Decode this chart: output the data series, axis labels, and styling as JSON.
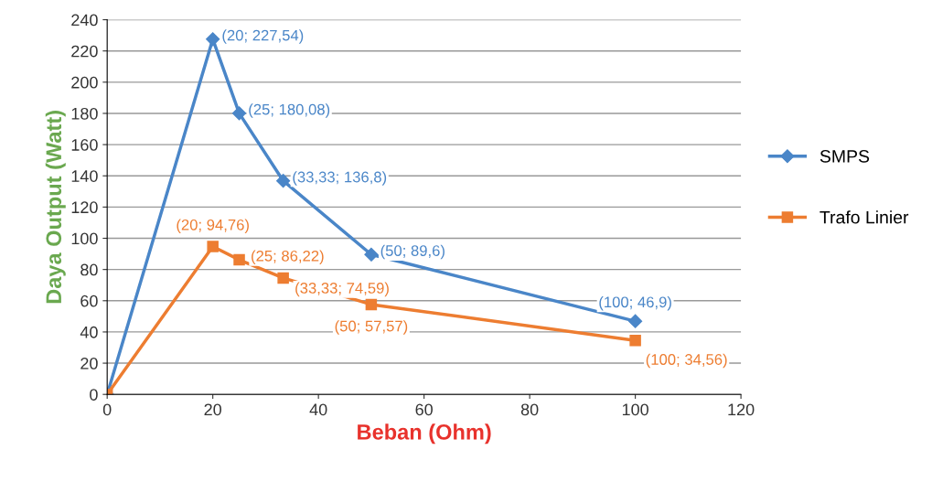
{
  "chart_data": {
    "type": "line",
    "xlabel": "Beban (Ohm)",
    "ylabel": "Daya Output (Watt)",
    "xlim": [
      0,
      120
    ],
    "xticks": [
      0,
      20,
      40,
      60,
      80,
      100,
      120
    ],
    "ylim": [
      0,
      240
    ],
    "yticks": [
      0,
      20,
      40,
      60,
      80,
      100,
      120,
      140,
      160,
      180,
      200,
      220,
      240
    ],
    "grid": "y",
    "legend": "right",
    "series": [
      {
        "name": "SMPS",
        "color": "#4a86c8",
        "marker": "diamond",
        "x": [
          0,
          20,
          25,
          33.33,
          50,
          100
        ],
        "values": [
          0,
          227.54,
          180.08,
          136.8,
          89.6,
          46.9
        ],
        "value_labels": [
          null,
          "(20; 227,54)",
          "(25; 180,08)",
          "(33,33; 136,8)",
          "(50; 89,6)",
          "(100; 46,9)"
        ]
      },
      {
        "name": "Trafo Linier",
        "color": "#ed7d31",
        "marker": "square",
        "x": [
          0,
          20,
          25,
          33.33,
          50,
          100
        ],
        "values": [
          0,
          94.76,
          86.22,
          74.59,
          57.57,
          34.56
        ],
        "value_labels": [
          null,
          "(20; 94,76)",
          "(25; 86,22)",
          "(33,33; 74,59)",
          "(50; 57,57)",
          "(100; 34,56)"
        ]
      }
    ]
  }
}
